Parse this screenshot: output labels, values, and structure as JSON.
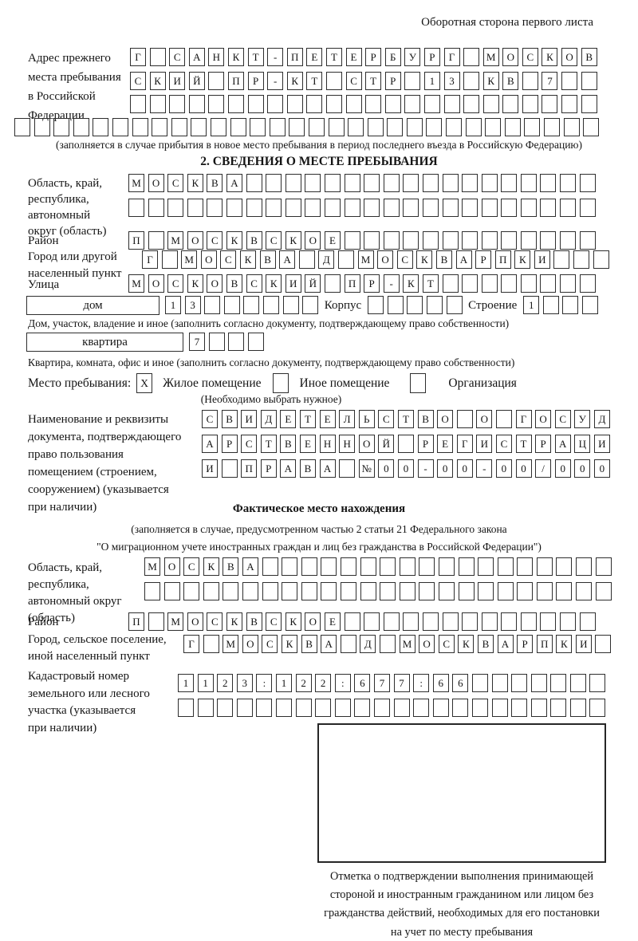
{
  "header": {
    "note": "Оборотная сторона первого листа"
  },
  "prev_address": {
    "label": [
      "Адрес прежнего",
      "места пребывания",
      "в Российской",
      "Федерации"
    ],
    "row1": "Г САНКТ-ПЕТЕРБУРГ МОСКОВ",
    "row2": "СКИЙ ПР-КТ СТР 13 КВ 7  ",
    "row3": "                        ",
    "row4": "                              ",
    "note": "(заполняется в случае прибытия в новое место пребывания в период последнего въезда в Российскую Федерацию)"
  },
  "section2": {
    "title": "2. СВЕДЕНИЯ О МЕСТЕ ПРЕБЫВАНИЯ",
    "region": {
      "label": [
        "Область, край,",
        "республика,",
        "автономный",
        "округ (область)"
      ],
      "row1": "МОСКВА                  ",
      "row2": "                        "
    },
    "district": {
      "label": "Район",
      "row": "П МОСКВСКОЕ             "
    },
    "city": {
      "label": [
        "Город или другой",
        "населенный пункт"
      ],
      "row": "Г МОСКВА Д МОСКВАРПКИ   "
    },
    "street": {
      "label": "Улица",
      "row": "МОСКОВСКИЙ ПР-КТ        "
    },
    "house": {
      "box_label": "дом",
      "cells1": "13      ",
      "korpus_label": "Корпус",
      "cells2": "     ",
      "stroenie_label": "Строение",
      "cells3": "1   "
    },
    "house_note": "Дом, участок, владение и иное (заполнить согласно документу, подтверждающему право собственности)",
    "apartment": {
      "box_label": "квартира",
      "cells": "7   "
    },
    "apartment_note": "Квартира, комната, офис и иное (заполнить согласно документу, подтверждающему право собственности)",
    "stay_type": {
      "label": "Место пребывания:",
      "options": [
        {
          "mark": "X",
          "label": "Жилое помещение"
        },
        {
          "mark": "",
          "label": "Иное помещение"
        },
        {
          "mark": "",
          "label": "Организация"
        }
      ],
      "note": "(Необходимо выбрать нужное)"
    },
    "document": {
      "label": [
        "Наименование и реквизиты",
        "документа, подтверждающего",
        "право пользования",
        "помещением (строением,",
        "сооружением) (указывается",
        "при наличии)"
      ],
      "row1": "СВИДЕТЕЛЬСТВО О ГОСУД",
      "row2": "АРСТВЕННОЙ РЕГИСТРАЦИ",
      "row3": "И ПРАВА №00-00-00/000"
    }
  },
  "actual_location": {
    "title": "Фактическое место нахождения",
    "note1": "(заполняется в случае, предусмотренном частью 2 статьи 21 Федерального закона",
    "note2": "\"О миграционном учете иностранных граждан и лиц без гражданства в Российской Федерации\")",
    "region": {
      "label": [
        "Область, край,",
        "республика,",
        "автономный округ",
        "(область)"
      ],
      "row1": "МОСКВА                  ",
      "row2": "                        "
    },
    "district": {
      "label": "Район",
      "row": "П МОСКВСКОЕ             "
    },
    "city": {
      "label": [
        "Город, сельское поселение,",
        "иной населенный пункт"
      ],
      "row": "Г МОСКВА Д МОСКВАРПКИ "
    },
    "cadastre": {
      "label": [
        "Кадастровый номер",
        "земельного или лесного",
        "участка (указывается",
        "при наличии)"
      ],
      "row1": "1123:122:677:66       ",
      "row2": "                      "
    },
    "stamp_caption": [
      "Отметка о подтверждении выполнения принимающей",
      "стороной и иностранным гражданином или лицом без",
      "гражданства действий, необходимых для его постановки",
      "на учет по месту пребывания"
    ]
  }
}
